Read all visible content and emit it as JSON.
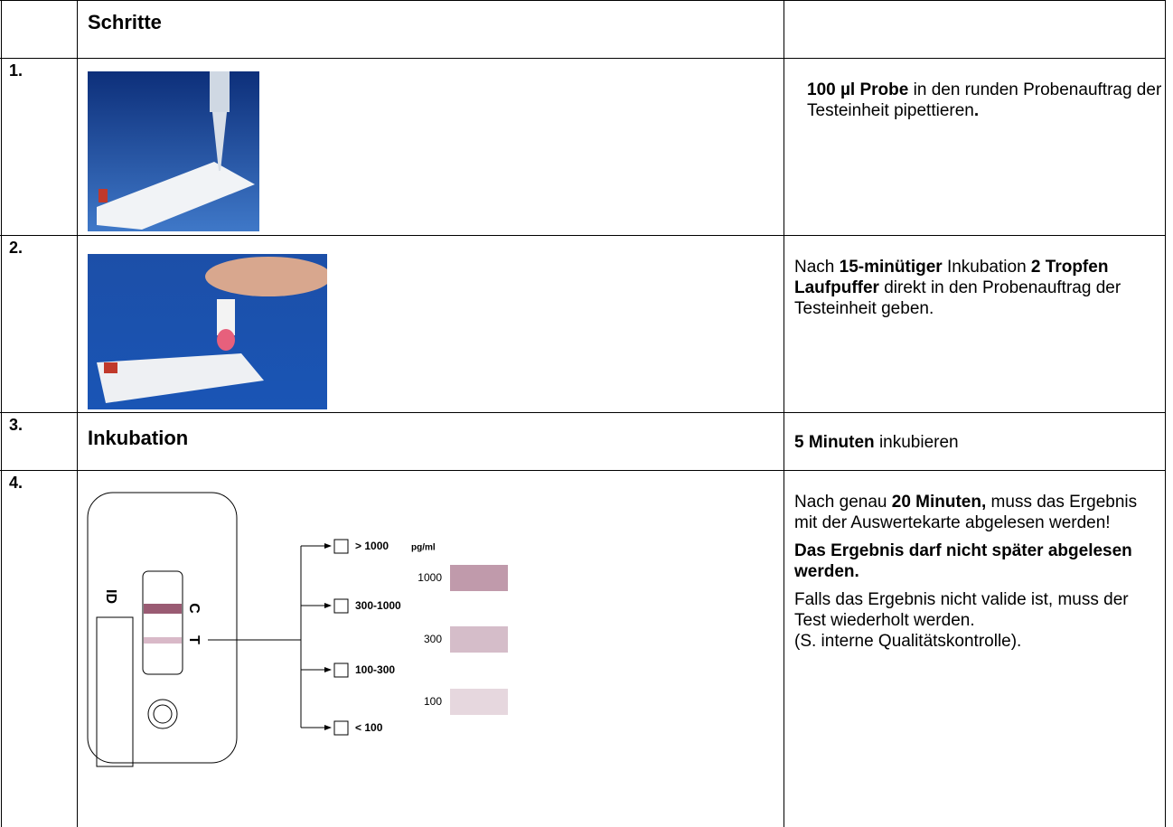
{
  "header": {
    "title": "Schritte"
  },
  "rows": [
    {
      "number": "1.",
      "description": [
        [
          {
            "b": "100 µl Probe"
          },
          {
            "t": " in den runden Probenauftrag der Testeinheit pipettieren"
          },
          {
            "b": "."
          }
        ]
      ]
    },
    {
      "number": "2.",
      "description": [
        [
          {
            "t": "Nach "
          },
          {
            "b": "15-minütiger"
          },
          {
            "t": " Inkubation "
          },
          {
            "b": "2 Tropfen Laufpuffer"
          },
          {
            "t": " direkt in den Probenauftrag der Testeinheit geben."
          }
        ]
      ]
    },
    {
      "number": "3.",
      "step": "Inkubation",
      "description": [
        [
          {
            "b": "5 Minuten"
          },
          {
            "t": " inkubieren"
          }
        ]
      ]
    },
    {
      "number": "4.",
      "description": [
        [
          {
            "t": "Nach genau "
          },
          {
            "b": "20 Minuten,"
          },
          {
            "t": " muss das Ergebnis mit der Auswertekarte abgelesen werden!"
          }
        ],
        [
          {
            "b": "Das Ergebnis darf nicht später abgelesen werden."
          }
        ],
        [
          {
            "t": "Falls das Ergebnis nicht valide ist, muss der Test wiederholt werden."
          },
          {
            "br": "(S. interne Qualitätskontrolle)."
          }
        ]
      ]
    }
  ],
  "diagram": {
    "id_label": "ID",
    "control_label": "C",
    "test_label": "T",
    "unit": "pg/ml",
    "results": [
      "> 1000",
      "300-1000",
      "100-300",
      "< 100"
    ],
    "swatches": [
      "1000",
      "300",
      "100"
    ]
  }
}
